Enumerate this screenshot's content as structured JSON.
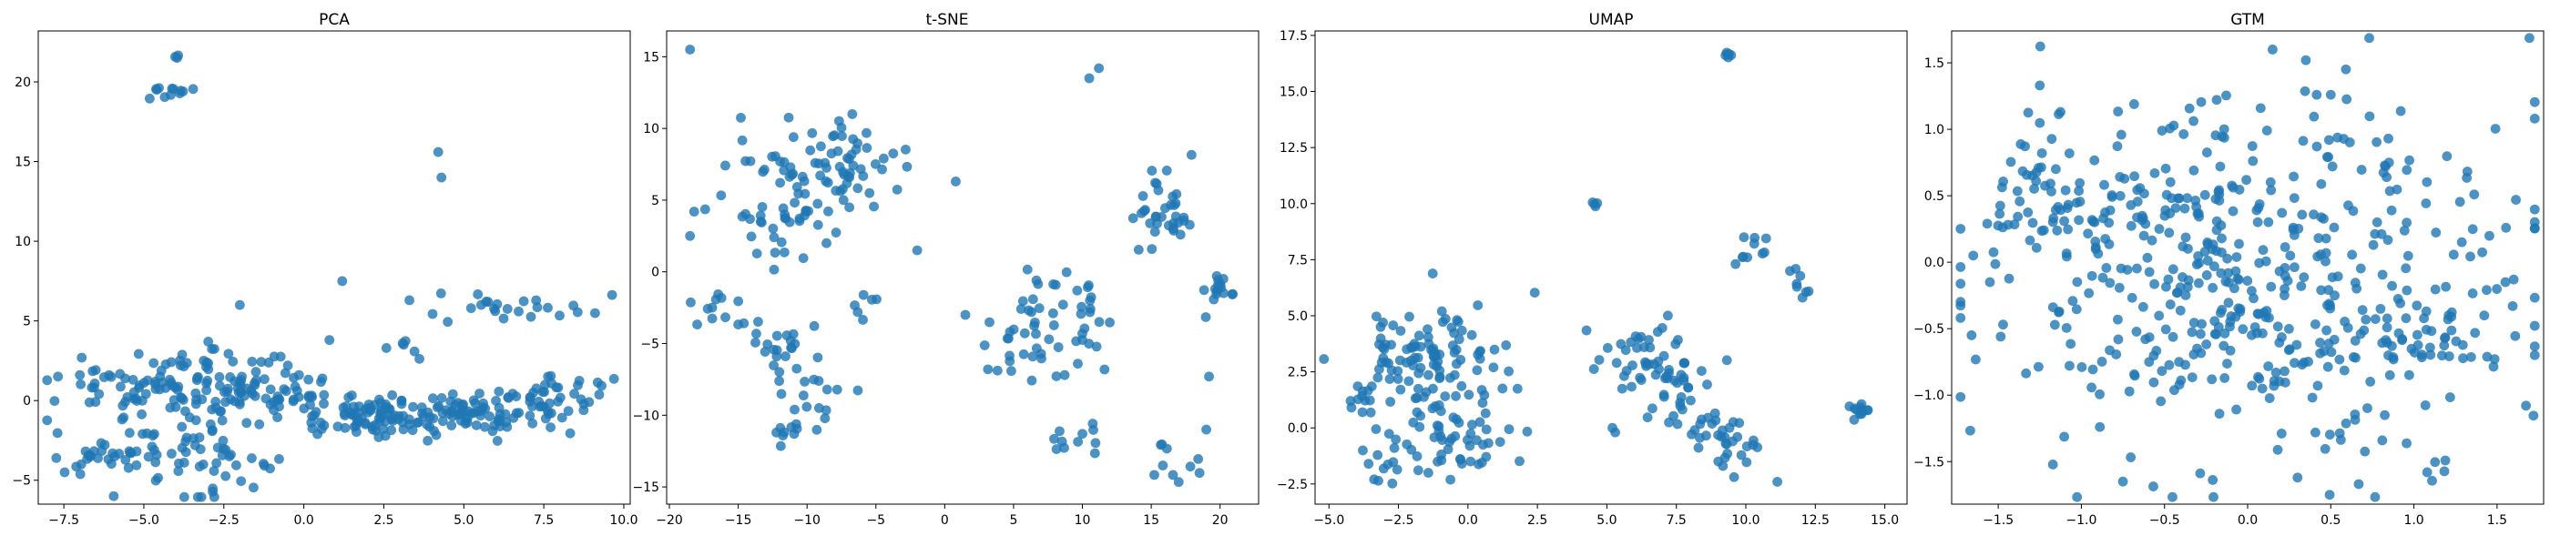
{
  "figure": {
    "background": "#ffffff",
    "marker_color": "#1f77b4",
    "marker_alpha": 0.8
  },
  "chart_data": [
    {
      "type": "scatter",
      "title": "PCA",
      "xlabel": "",
      "ylabel": "",
      "xlim": [
        -8.3,
        10.2
      ],
      "ylim": [
        -6.5,
        23.2
      ],
      "xticks": [
        -7.5,
        -5.0,
        -2.5,
        0.0,
        2.5,
        5.0,
        7.5,
        10.0
      ],
      "xtick_labels": [
        "−7.5",
        "−5.0",
        "−2.5",
        "0.0",
        "2.5",
        "5.0",
        "7.5",
        "10.0"
      ],
      "yticks": [
        -5,
        0,
        5,
        10,
        15,
        20
      ],
      "ytick_labels": [
        "−5",
        "0",
        "5",
        "10",
        "15",
        "20"
      ],
      "grid": false,
      "clusters": [
        {
          "cx": -4.3,
          "cy": 19.4,
          "sx": 0.45,
          "sy": 0.25,
          "n": 12
        },
        {
          "cx": -4.0,
          "cy": 21.6,
          "sx": 0.1,
          "sy": 0.08,
          "n": 3
        },
        {
          "cx": -3.9,
          "cy": 1.0,
          "sx": 1.9,
          "sy": 1.1,
          "n": 110
        },
        {
          "cx": -4.2,
          "cy": -3.6,
          "sx": 1.6,
          "sy": 1.0,
          "n": 70
        },
        {
          "cx": -6.5,
          "cy": -3.5,
          "sx": 0.5,
          "sy": 0.35,
          "n": 12
        },
        {
          "cx": -1.2,
          "cy": 0.2,
          "sx": 1.3,
          "sy": 1.0,
          "n": 55
        },
        {
          "cx": 2.3,
          "cy": -1.0,
          "sx": 1.2,
          "sy": 0.6,
          "n": 70
        },
        {
          "cx": 5.3,
          "cy": -0.7,
          "sx": 1.6,
          "sy": 0.7,
          "n": 100
        },
        {
          "cx": 7.7,
          "cy": 0.2,
          "sx": 0.6,
          "sy": 0.6,
          "n": 25
        },
        {
          "cx": 6.8,
          "cy": 5.8,
          "sx": 1.3,
          "sy": 0.5,
          "n": 24
        },
        {
          "cx": 2.8,
          "cy": 3.5,
          "sx": 0.5,
          "sy": 0.4,
          "n": 6
        },
        {
          "cx": 9.5,
          "cy": 1.2,
          "sx": 0.2,
          "sy": 0.2,
          "n": 3
        }
      ],
      "points": [
        [
          4.2,
          15.6
        ],
        [
          4.3,
          14.0
        ],
        [
          1.2,
          7.5
        ],
        [
          -2.0,
          6.0
        ],
        [
          3.3,
          6.3
        ],
        [
          -0.5,
          2.2
        ],
        [
          0.8,
          3.8
        ],
        [
          -7.0,
          1.6
        ]
      ]
    },
    {
      "type": "scatter",
      "title": "t-SNE",
      "xlabel": "",
      "ylabel": "",
      "xlim": [
        -20.2,
        22.8
      ],
      "ylim": [
        -16.2,
        16.8
      ],
      "xticks": [
        -20,
        -15,
        -10,
        -5,
        0,
        5,
        10,
        15,
        20
      ],
      "xtick_labels": [
        "−20",
        "−15",
        "−10",
        "−5",
        "0",
        "5",
        "10",
        "15",
        "20"
      ],
      "yticks": [
        -15,
        -10,
        -5,
        0,
        5,
        10,
        15
      ],
      "ytick_labels": [
        "−15",
        "−10",
        "−5",
        "0",
        "5",
        "10",
        "15"
      ],
      "grid": false,
      "clusters": [
        {
          "cx": -11.0,
          "cy": 5.5,
          "sx": 2.2,
          "sy": 2.3,
          "n": 70
        },
        {
          "cx": -7.0,
          "cy": 8.0,
          "sx": 1.8,
          "sy": 1.5,
          "n": 40
        },
        {
          "cx": -10.0,
          "cy": -10.0,
          "sx": 1.5,
          "sy": 1.3,
          "n": 25
        },
        {
          "cx": -12.0,
          "cy": -5.0,
          "sx": 1.5,
          "sy": 1.1,
          "n": 20
        },
        {
          "cx": -16.0,
          "cy": -3.0,
          "sx": 1.2,
          "sy": 1.6,
          "n": 12
        },
        {
          "cx": 6.5,
          "cy": -4.0,
          "sx": 2.0,
          "sy": 2.0,
          "n": 40
        },
        {
          "cx": 9.5,
          "cy": -3.0,
          "sx": 1.5,
          "sy": 2.5,
          "n": 20
        },
        {
          "cx": 15.5,
          "cy": 4.5,
          "sx": 1.2,
          "sy": 1.5,
          "n": 35
        },
        {
          "cx": 20.0,
          "cy": -1.2,
          "sx": 0.7,
          "sy": 0.8,
          "n": 15
        },
        {
          "cx": 16.5,
          "cy": -13.0,
          "sx": 1.0,
          "sy": 1.0,
          "n": 10
        },
        {
          "cx": 9.5,
          "cy": -11.5,
          "sx": 1.0,
          "sy": 0.8,
          "n": 10
        },
        {
          "cx": -6.0,
          "cy": -2.5,
          "sx": 0.6,
          "sy": 0.8,
          "n": 6
        }
      ],
      "points": [
        [
          -18.5,
          15.5
        ],
        [
          -18.2,
          4.2
        ],
        [
          -18.5,
          2.5
        ],
        [
          10.5,
          13.5
        ],
        [
          11.2,
          14.2
        ],
        [
          0.8,
          6.3
        ],
        [
          -2.0,
          1.5
        ],
        [
          19.2,
          -7.3
        ],
        [
          19.0,
          -11.0
        ],
        [
          1.5,
          -3.0
        ]
      ]
    },
    {
      "type": "scatter",
      "title": "UMAP",
      "xlabel": "",
      "ylabel": "",
      "xlim": [
        -5.5,
        15.8
      ],
      "ylim": [
        -3.4,
        17.7
      ],
      "xticks": [
        -5.0,
        -2.5,
        0.0,
        2.5,
        5.0,
        7.5,
        10.0,
        12.5,
        15.0
      ],
      "xtick_labels": [
        "−5.0",
        "−2.5",
        "0.0",
        "2.5",
        "5.0",
        "7.5",
        "10.0",
        "12.5",
        "15.0"
      ],
      "yticks": [
        -2.5,
        0.0,
        2.5,
        5.0,
        7.5,
        10.0,
        12.5,
        15.0,
        17.5
      ],
      "ytick_labels": [
        "−2.5",
        "0.0",
        "2.5",
        "5.0",
        "7.5",
        "10.0",
        "12.5",
        "15.0",
        "17.5"
      ],
      "grid": false,
      "clusters": [
        {
          "cx": -1.2,
          "cy": 3.0,
          "sx": 1.5,
          "sy": 1.3,
          "n": 110
        },
        {
          "cx": -0.7,
          "cy": -0.6,
          "sx": 1.2,
          "sy": 0.9,
          "n": 50
        },
        {
          "cx": -4.0,
          "cy": 1.5,
          "sx": 0.3,
          "sy": 0.5,
          "n": 10
        },
        {
          "cx": -3.0,
          "cy": -1.6,
          "sx": 0.4,
          "sy": 0.5,
          "n": 10
        },
        {
          "cx": 6.5,
          "cy": 3.0,
          "sx": 1.0,
          "sy": 0.9,
          "n": 45
        },
        {
          "cx": 7.5,
          "cy": 1.5,
          "sx": 0.6,
          "sy": 0.8,
          "n": 20
        },
        {
          "cx": 9.2,
          "cy": -0.5,
          "sx": 0.6,
          "sy": 0.8,
          "n": 35
        },
        {
          "cx": 14.2,
          "cy": 0.8,
          "sx": 0.3,
          "sy": 0.15,
          "n": 12
        },
        {
          "cx": 10.3,
          "cy": 8.0,
          "sx": 0.35,
          "sy": 0.45,
          "n": 10
        },
        {
          "cx": 11.9,
          "cy": 6.2,
          "sx": 0.2,
          "sy": 0.6,
          "n": 8
        },
        {
          "cx": 9.4,
          "cy": 16.6,
          "sx": 0.15,
          "sy": 0.08,
          "n": 6
        },
        {
          "cx": 4.6,
          "cy": 9.95,
          "sx": 0.1,
          "sy": 0.08,
          "n": 4
        }
      ],
      "points": [
        [
          5.3,
          -0.2
        ],
        [
          5.2,
          0.0
        ]
      ]
    },
    {
      "type": "scatter",
      "title": "GTM",
      "xlabel": "",
      "ylabel": "",
      "xlim": [
        -1.78,
        1.78
      ],
      "ylim": [
        -1.82,
        1.74
      ],
      "xticks": [
        -1.5,
        -1.0,
        -0.5,
        0.0,
        0.5,
        1.0,
        1.5
      ],
      "xtick_labels": [
        "−1.5",
        "−1.0",
        "−0.5",
        "0.0",
        "0.5",
        "1.0",
        "1.5"
      ],
      "yticks": [
        -1.5,
        -1.0,
        -0.5,
        0.0,
        0.5,
        1.0,
        1.5
      ],
      "ytick_labels": [
        "−1.5",
        "−1.0",
        "−0.5",
        "0.0",
        "0.5",
        "1.0",
        "1.5"
      ],
      "grid": false,
      "clusters": [
        {
          "cx": 0.0,
          "cy": -0.1,
          "sx": 0.8,
          "sy": 0.7,
          "n": 480
        },
        {
          "cx": -1.25,
          "cy": 0.55,
          "sx": 0.2,
          "sy": 0.2,
          "n": 30
        },
        {
          "cx": 1.1,
          "cy": -0.6,
          "sx": 0.15,
          "sy": 0.15,
          "n": 25
        },
        {
          "cx": -0.5,
          "cy": 0.3,
          "sx": 0.3,
          "sy": 0.3,
          "n": 40
        }
      ],
      "points": [
        [
          0.15,
          1.6
        ],
        [
          0.35,
          1.52
        ],
        [
          0.5,
          1.26
        ],
        [
          -1.25,
          1.33
        ],
        [
          1.6,
          -0.13
        ],
        [
          1.55,
          -0.15
        ],
        [
          1.08,
          -1.58
        ],
        [
          0.3,
          -1.62
        ],
        [
          -0.75,
          -1.65
        ],
        [
          -1.65,
          0.05
        ],
        [
          -1.55,
          -0.15
        ],
        [
          0.85,
          0.75
        ]
      ]
    }
  ]
}
